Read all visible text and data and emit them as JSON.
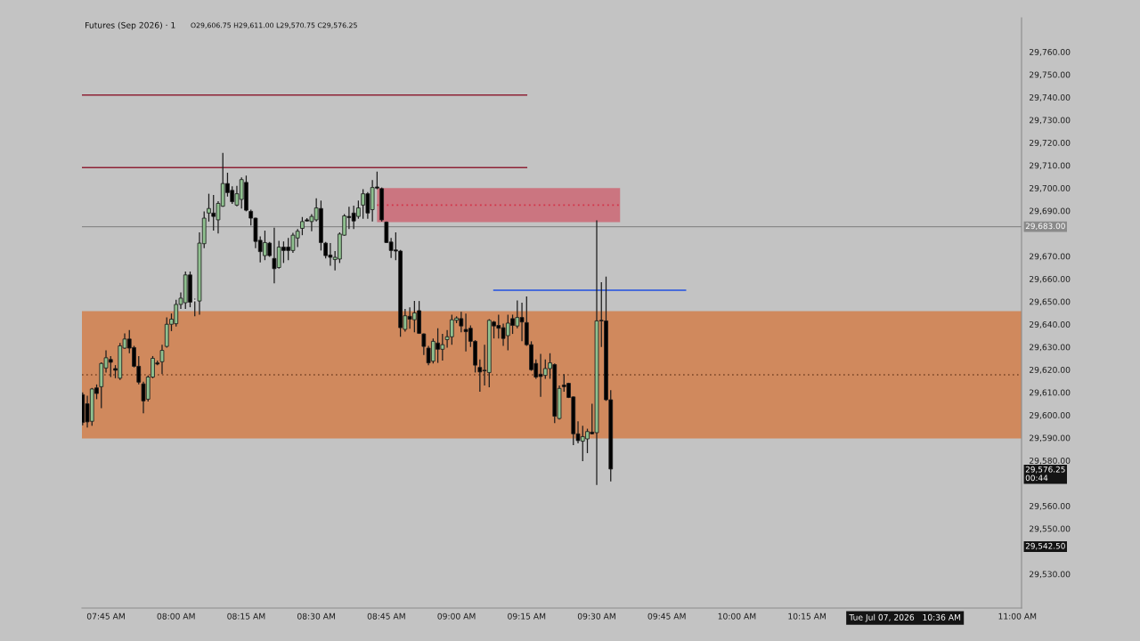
{
  "chart_data": {
    "type": "candlestick",
    "title": "Futures (Sep 2026) · 1",
    "subtitle": "O29,606.75 H29,611.00 L29,570.75 C29,576.25",
    "x": [
      "2026-07-07T07:40",
      "2026-07-07T07:41",
      "2026-07-07T07:42",
      "2026-07-07T07:43",
      "2026-07-07T07:44",
      "2026-07-07T07:45",
      "2026-07-07T07:46",
      "2026-07-07T07:47",
      "2026-07-07T07:48",
      "2026-07-07T07:49",
      "2026-07-07T07:50",
      "2026-07-07T07:51",
      "2026-07-07T07:52",
      "2026-07-07T07:53",
      "2026-07-07T07:54",
      "2026-07-07T07:55",
      "2026-07-07T07:56",
      "2026-07-07T07:57",
      "2026-07-07T07:58",
      "2026-07-07T07:59",
      "2026-07-07T08:00",
      "2026-07-07T08:01",
      "2026-07-07T08:02",
      "2026-07-07T08:03",
      "2026-07-07T08:04",
      "2026-07-07T08:05",
      "2026-07-07T08:06",
      "2026-07-07T08:07",
      "2026-07-07T08:08",
      "2026-07-07T08:09",
      "2026-07-07T08:10",
      "2026-07-07T08:11",
      "2026-07-07T08:12",
      "2026-07-07T08:13",
      "2026-07-07T08:14",
      "2026-07-07T08:15",
      "2026-07-07T08:16",
      "2026-07-07T08:17",
      "2026-07-07T08:18",
      "2026-07-07T08:19",
      "2026-07-07T08:20",
      "2026-07-07T08:21",
      "2026-07-07T08:22",
      "2026-07-07T08:23",
      "2026-07-07T08:24",
      "2026-07-07T08:25",
      "2026-07-07T08:26",
      "2026-07-07T08:27",
      "2026-07-07T08:28",
      "2026-07-07T08:29",
      "2026-07-07T08:30",
      "2026-07-07T08:31",
      "2026-07-07T08:32",
      "2026-07-07T08:33",
      "2026-07-07T08:34",
      "2026-07-07T08:35",
      "2026-07-07T08:36",
      "2026-07-07T08:37",
      "2026-07-07T08:38",
      "2026-07-07T08:39",
      "2026-07-07T08:40",
      "2026-07-07T08:41",
      "2026-07-07T08:42",
      "2026-07-07T08:43",
      "2026-07-07T08:44",
      "2026-07-07T08:45",
      "2026-07-07T08:46",
      "2026-07-07T08:47",
      "2026-07-07T08:48",
      "2026-07-07T08:49",
      "2026-07-07T08:50",
      "2026-07-07T08:51",
      "2026-07-07T08:52",
      "2026-07-07T08:53",
      "2026-07-07T08:54",
      "2026-07-07T08:55",
      "2026-07-07T08:56",
      "2026-07-07T08:57",
      "2026-07-07T08:58",
      "2026-07-07T08:59",
      "2026-07-07T09:00",
      "2026-07-07T09:01",
      "2026-07-07T09:02",
      "2026-07-07T09:03",
      "2026-07-07T09:04",
      "2026-07-07T09:05",
      "2026-07-07T09:06",
      "2026-07-07T09:07",
      "2026-07-07T09:08",
      "2026-07-07T09:09",
      "2026-07-07T09:10",
      "2026-07-07T09:11",
      "2026-07-07T09:12",
      "2026-07-07T09:13",
      "2026-07-07T09:14",
      "2026-07-07T09:15",
      "2026-07-07T09:16",
      "2026-07-07T09:17",
      "2026-07-07T09:18",
      "2026-07-07T09:19",
      "2026-07-07T09:20",
      "2026-07-07T09:21",
      "2026-07-07T09:22",
      "2026-07-07T09:23",
      "2026-07-07T09:24",
      "2026-07-07T09:25",
      "2026-07-07T09:26",
      "2026-07-07T09:27",
      "2026-07-07T09:28",
      "2026-07-07T09:29",
      "2026-07-07T09:30",
      "2026-07-07T09:31",
      "2026-07-07T09:32",
      "2026-07-07T09:33"
    ],
    "ohlc": [
      [
        29609,
        29610,
        29595.5,
        29596.75
      ],
      [
        29605,
        29608.5,
        29594.5,
        29597
      ],
      [
        29597.25,
        29612,
        29595.25,
        29611.5
      ],
      [
        29612,
        29613.5,
        29607,
        29609.5
      ],
      [
        29612.5,
        29623.25,
        29603,
        29622.75
      ],
      [
        29620.75,
        29628.5,
        29618.75,
        29625.25
      ],
      [
        29624.5,
        29626,
        29616.75,
        29623.25
      ],
      [
        29620.5,
        29622,
        29616.25,
        29619.75
      ],
      [
        29616.25,
        29631.75,
        29615.5,
        29630.5
      ],
      [
        29629.5,
        29636,
        29629.25,
        29633.5
      ],
      [
        29633.5,
        29637.5,
        29627.25,
        29629.5
      ],
      [
        29629.75,
        29630.5,
        29621,
        29621.5
      ],
      [
        29621.5,
        29626,
        29613.5,
        29614.5
      ],
      [
        29613.75,
        29614.75,
        29600.75,
        29606.25
      ],
      [
        29607,
        29617.5,
        29606,
        29616.75
      ],
      [
        29616.75,
        29626,
        29616.25,
        29625
      ],
      [
        29623,
        29624,
        29622,
        29622.5
      ],
      [
        29623.5,
        29631,
        29618,
        29628.5
      ],
      [
        29630.25,
        29643,
        29629.75,
        29640
      ],
      [
        29640,
        29644.75,
        29637,
        29642.25
      ],
      [
        29640.25,
        29650.75,
        29639,
        29648.75
      ],
      [
        29648.75,
        29654,
        29646.75,
        29651.5
      ],
      [
        29649.5,
        29663.25,
        29646.75,
        29661.75
      ],
      [
        29661.75,
        29663.25,
        29647.5,
        29649.75
      ],
      [
        29650.5,
        29651.25,
        29643.5,
        29650.5
      ],
      [
        29650.25,
        29680.5,
        29644.25,
        29675.75
      ],
      [
        29675.5,
        29689.75,
        29673.5,
        29686.75
      ],
      [
        29689,
        29697.5,
        29685.25,
        29691
      ],
      [
        29689,
        29697,
        29681.25,
        29687.5
      ],
      [
        29686,
        29694.25,
        29680,
        29693.25
      ],
      [
        29692,
        29715.5,
        29691.75,
        29702
      ],
      [
        29702,
        29706.75,
        29696.25,
        29698
      ],
      [
        29699,
        29700.75,
        29693,
        29694
      ],
      [
        29692.5,
        29701,
        29692,
        29697.5
      ],
      [
        29695,
        29704.75,
        29691,
        29703.75
      ],
      [
        29702.5,
        29705.5,
        29689.75,
        29690.25
      ],
      [
        29689.75,
        29690.5,
        29683.5,
        29686.75
      ],
      [
        29686.75,
        29687,
        29673.5,
        29676.5
      ],
      [
        29677,
        29678.75,
        29667.25,
        29672
      ],
      [
        29670.25,
        29681.25,
        29668.25,
        29676
      ],
      [
        29675.75,
        29676.25,
        29669.75,
        29670.25
      ],
      [
        29669,
        29682.5,
        29658,
        29664.5
      ],
      [
        29665,
        29676.75,
        29664.5,
        29674
      ],
      [
        29674,
        29676.5,
        29667,
        29672.5
      ],
      [
        29674,
        29678,
        29668.25,
        29672.5
      ],
      [
        29672.5,
        29680.25,
        29671.5,
        29679.25
      ],
      [
        29678,
        29682,
        29674,
        29681
      ],
      [
        29682.25,
        29687.25,
        29679.25,
        29685.25
      ],
      [
        29686,
        29686.75,
        29685.25,
        29685.5
      ],
      [
        29685.25,
        29688.5,
        29681,
        29687.5
      ],
      [
        29686,
        29695.5,
        29685.25,
        29691.25
      ],
      [
        29691,
        29694.5,
        29672.5,
        29676
      ],
      [
        29675.75,
        29676.25,
        29669,
        29670.25
      ],
      [
        29670.5,
        29675.75,
        29665.75,
        29669.5
      ],
      [
        29668.5,
        29672.25,
        29663.75,
        29669.5
      ],
      [
        29668.75,
        29680.5,
        29667,
        29679.75
      ],
      [
        29679.25,
        29688.5,
        29679,
        29687.75
      ],
      [
        29687.5,
        29691.75,
        29682,
        29687
      ],
      [
        29689,
        29692.25,
        29682,
        29685.5
      ],
      [
        29687.5,
        29694.5,
        29686.5,
        29691.25
      ],
      [
        29692.5,
        29699.5,
        29686.5,
        29697.5
      ],
      [
        29697.5,
        29698.25,
        29686.5,
        29689
      ],
      [
        29690.5,
        29703.5,
        29685.25,
        29700.25
      ],
      [
        29700.5,
        29707.25,
        29699.5,
        29700
      ],
      [
        29699.75,
        29700.25,
        29685.25,
        29686
      ],
      [
        29685,
        29685.25,
        29675.75,
        29676
      ],
      [
        29676.25,
        29678,
        29669.25,
        29672.5
      ],
      [
        29672.75,
        29680.5,
        29668.25,
        29672.25
      ],
      [
        29672.25,
        29672.75,
        29634.5,
        29638.5
      ],
      [
        29637.75,
        29646.75,
        29636.75,
        29643.75
      ],
      [
        29643.5,
        29647.5,
        29638,
        29642.25
      ],
      [
        29642,
        29650.25,
        29636.5,
        29645
      ],
      [
        29646,
        29650.25,
        29635.75,
        29636
      ],
      [
        29635.75,
        29636,
        29626.5,
        29630.25
      ],
      [
        29629.5,
        29630.5,
        29622,
        29623
      ],
      [
        29623.75,
        29633.75,
        29622.75,
        29632.5
      ],
      [
        29631.75,
        29638.25,
        29623,
        29629
      ],
      [
        29629,
        29635.75,
        29624,
        29631
      ],
      [
        29633.25,
        29637.5,
        29629.75,
        29634.5
      ],
      [
        29634.5,
        29644.25,
        29631,
        29642
      ],
      [
        29641.75,
        29643.5,
        29640.5,
        29642.75
      ],
      [
        29642.5,
        29645.5,
        29636.5,
        29639.25
      ],
      [
        29637.75,
        29644.75,
        29628,
        29636.75
      ],
      [
        29638.25,
        29639.5,
        29630,
        29632.5
      ],
      [
        29632.5,
        29633,
        29618.75,
        29622
      ],
      [
        29621,
        29624.5,
        29610.25,
        29619
      ],
      [
        29619.75,
        29631,
        29613,
        29619.5
      ],
      [
        29618.75,
        29642.25,
        29612.25,
        29641.75
      ],
      [
        29641,
        29641.5,
        29633.75,
        29639.25
      ],
      [
        29639.5,
        29644.25,
        29633.75,
        29638.25
      ],
      [
        29638.5,
        29640.25,
        29630.5,
        29633.75
      ],
      [
        29635,
        29644.25,
        29628.5,
        29640.5
      ],
      [
        29642.5,
        29644.25,
        29635.75,
        29639.5
      ],
      [
        29639.25,
        29650.5,
        29638.25,
        29643
      ],
      [
        29643,
        29649.5,
        29632.5,
        29641
      ],
      [
        29640.75,
        29652.25,
        29630.5,
        29631
      ],
      [
        29631,
        29632.5,
        29619.5,
        29620
      ],
      [
        29622.75,
        29624.5,
        29616,
        29616.75
      ],
      [
        29618,
        29627,
        29608,
        29617
      ],
      [
        29617.5,
        29624.5,
        29616,
        29620.5
      ],
      [
        29620.5,
        29627.25,
        29616,
        29623
      ],
      [
        29622.25,
        29622.75,
        29596.5,
        29599.5
      ],
      [
        29598.5,
        29613,
        29598,
        29611.75
      ],
      [
        29613.25,
        29618,
        29610.25,
        29612.5
      ],
      [
        29614,
        29614.25,
        29607.5,
        29607.75
      ],
      [
        29608,
        29608.25,
        29586.75,
        29591.75
      ],
      [
        29591.75,
        29597.25,
        29587.5,
        29588.75
      ],
      [
        29588.5,
        29595.25,
        29579.75,
        29590.5
      ],
      [
        29589.5,
        29594,
        29583.25,
        29592.75
      ],
      [
        29592.5,
        29605,
        29591.5,
        29591.75
      ],
      [
        29592.25,
        29685.75,
        29569.25,
        29641.5
      ],
      [
        29641.75,
        29658.5,
        29630,
        29641.5
      ],
      [
        29641.5,
        29661,
        29606.25,
        29606.75
      ],
      [
        29606.75,
        29611,
        29570.75,
        29576.25
      ]
    ],
    "colors": [
      "#000000",
      "#000000",
      "#8fc08f",
      "#000000",
      "#8fc08f",
      "#8fc08f",
      "#000000",
      "#000000",
      "#8fc08f",
      "#8fc08f",
      "#000000",
      "#000000",
      "#000000",
      "#000000",
      "#8fc08f",
      "#8fc08f",
      "#000000",
      "#8fc08f",
      "#8fc08f",
      "#8fc08f",
      "#8fc08f",
      "#8fc08f",
      "#8fc08f",
      "#000000",
      "#d6d6d6",
      "#8fc08f",
      "#8fc08f",
      "#8fc08f",
      "#000000",
      "#8fc08f",
      "#8fc08f",
      "#000000",
      "#000000",
      "#8fc08f",
      "#8fc08f",
      "#000000",
      "#000000",
      "#000000",
      "#000000",
      "#8fc08f",
      "#000000",
      "#000000",
      "#8fc08f",
      "#000000",
      "#000000",
      "#8fc08f",
      "#8fc08f",
      "#8fc08f",
      "#000000",
      "#8fc08f",
      "#8fc08f",
      "#000000",
      "#000000",
      "#000000",
      "#8fc08f",
      "#8fc08f",
      "#8fc08f",
      "#000000",
      "#000000",
      "#8fc08f",
      "#8fc08f",
      "#000000",
      "#8fc08f",
      "#000000",
      "#000000",
      "#000000",
      "#000000",
      "#000000",
      "#000000",
      "#8fc08f",
      "#000000",
      "#8fc08f",
      "#000000",
      "#000000",
      "#000000",
      "#8fc08f",
      "#000000",
      "#8fc08f",
      "#8fc08f",
      "#8fc08f",
      "#8fc08f",
      "#000000",
      "#000000",
      "#000000",
      "#000000",
      "#000000",
      "#000000",
      "#8fc08f",
      "#000000",
      "#000000",
      "#000000",
      "#8fc08f",
      "#000000",
      "#8fc08f",
      "#000000",
      "#000000",
      "#000000",
      "#000000",
      "#000000",
      "#8fc08f",
      "#8fc08f",
      "#000000",
      "#8fc08f",
      "#000000",
      "#000000",
      "#000000",
      "#000000",
      "#8fc08f",
      "#8fc08f",
      "#000000",
      "#8fc08f",
      "#000000",
      "#000000",
      "#000000"
    ],
    "series": [
      {
        "type": "line",
        "x": [
          "2026-07-07T07:39:51",
          "2026-07-07T09:15"
        ],
        "values": [
          29741,
          29741
        ],
        "color": "#8e2236"
      },
      {
        "type": "line",
        "x": [
          "2026-07-07T07:39:51",
          "2026-07-07T09:15"
        ],
        "values": [
          29709,
          29709
        ],
        "color": "#8e2236"
      },
      {
        "type": "line",
        "x": [
          "2026-07-07T08:43",
          "2026-07-07T09:35"
        ],
        "values": [
          29692.5,
          29692.5
        ],
        "lower": [
          29685,
          29685
        ],
        "upper": [
          29700,
          29700
        ],
        "color": "#d23448",
        "line_style": "dotted"
      },
      {
        "type": "line",
        "x": [
          "2026-07-07T09:08",
          "2026-07-07T09:49"
        ],
        "values": [
          29655,
          29655
        ],
        "color": "#1f4fe0"
      }
    ],
    "bands": [
      {
        "axis": "y",
        "from": 29589.75,
        "to": 29645.75,
        "color": "#d0895d"
      }
    ],
    "ref_lines": [
      {
        "axis": "y",
        "value": 29617.75,
        "color": "#7a4526",
        "line_style": "dotted"
      },
      {
        "axis": "y",
        "value": 29683,
        "label": "29,683.00",
        "color": "#8a8a8a"
      }
    ],
    "annotations": [
      "29,576.25\n00:44",
      "29,542.50",
      "Tue Jul 07, 2026   10:36 AM"
    ],
    "xlim": [
      "2026-07-07T07:39:51",
      "2026-07-07T11:00:54"
    ],
    "xticks": [
      {
        "value": "2026-07-07T07:45",
        "label": "07:45 AM"
      },
      {
        "value": "2026-07-07T08:00",
        "label": "08:00 AM"
      },
      {
        "value": "2026-07-07T08:15",
        "label": "08:15 AM"
      },
      {
        "value": "2026-07-07T08:30",
        "label": "08:30 AM"
      },
      {
        "value": "2026-07-07T08:45",
        "label": "08:45 AM"
      },
      {
        "value": "2026-07-07T09:00",
        "label": "09:00 AM"
      },
      {
        "value": "2026-07-07T09:15",
        "label": "09:15 AM"
      },
      {
        "value": "2026-07-07T09:30",
        "label": "09:30 AM"
      },
      {
        "value": "2026-07-07T09:45",
        "label": "09:45 AM"
      },
      {
        "value": "2026-07-07T10:00",
        "label": "10:00 AM"
      },
      {
        "value": "2026-07-07T10:15",
        "label": "10:15 AM"
      },
      {
        "value": "2026-07-07T11:00",
        "label": "11:00 AM"
      }
    ],
    "ylim": [
      29515,
      29775
    ],
    "yticks": [
      {
        "value": 29530,
        "label": "29,530.00"
      },
      {
        "value": 29550,
        "label": "29,550.00"
      },
      {
        "value": 29560,
        "label": "29,560.00"
      },
      {
        "value": 29580,
        "label": "29,580.00"
      },
      {
        "value": 29590,
        "label": "29,590.00"
      },
      {
        "value": 29600,
        "label": "29,600.00"
      },
      {
        "value": 29610,
        "label": "29,610.00"
      },
      {
        "value": 29620,
        "label": "29,620.00"
      },
      {
        "value": 29630,
        "label": "29,630.00"
      },
      {
        "value": 29640,
        "label": "29,640.00"
      },
      {
        "value": 29650,
        "label": "29,650.00"
      },
      {
        "value": 29660,
        "label": "29,660.00"
      },
      {
        "value": 29670,
        "label": "29,670.00"
      },
      {
        "value": 29690,
        "label": "29,690.00"
      },
      {
        "value": 29700,
        "label": "29,700.00"
      },
      {
        "value": 29710,
        "label": "29,710.00"
      },
      {
        "value": 29720,
        "label": "29,720.00"
      },
      {
        "value": 29730,
        "label": "29,730.00"
      },
      {
        "value": 29740,
        "label": "29,740.00"
      },
      {
        "value": 29750,
        "label": "29,750.00"
      },
      {
        "value": 29760,
        "label": "29,760.00"
      }
    ]
  }
}
